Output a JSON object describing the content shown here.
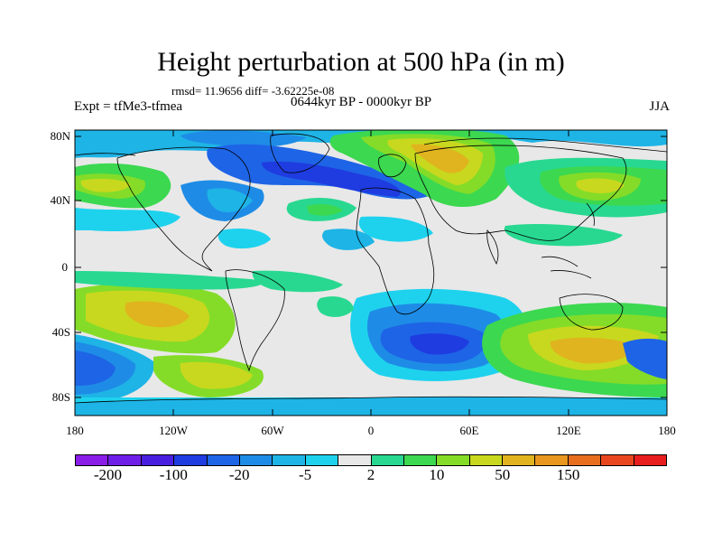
{
  "title": "Height perturbation at 500 hPa (in m)",
  "stats": "rmsd= 11.9656 diff= -3.62225e-08",
  "experiment": "Expt = tfMe3-tfmea",
  "period": "0644kyr BP - 0000kyr BP",
  "season": "JJA",
  "lat_ticks": [
    "80N",
    "40N",
    "0",
    "40S",
    "80S"
  ],
  "lon_ticks": [
    "180",
    "120W",
    "60W",
    "0",
    "60E",
    "120E",
    "180"
  ],
  "colorbar": {
    "colors": [
      "#8a1ee8",
      "#6f1ee8",
      "#4a1ee0",
      "#1e3ce0",
      "#1e64e6",
      "#1e8ce6",
      "#1eb4e6",
      "#1ed2ee",
      "#e8e8e8",
      "#28d890",
      "#3cd850",
      "#84dc28",
      "#c8d81e",
      "#e0b41e",
      "#e8961e",
      "#e86e1e",
      "#e8461e",
      "#e81e1e"
    ],
    "labels": [
      "-200",
      "-100",
      "-20",
      "-5",
      "2",
      "10",
      "50",
      "150"
    ]
  },
  "chart_data": {
    "type": "heatmap",
    "title": "Height perturbation at 500 hPa (in m)",
    "subtitle": "0644kyr BP - 0000kyr BP",
    "season": "JJA",
    "xlabel": "",
    "ylabel": "",
    "x_range": [
      -180,
      180
    ],
    "y_range": [
      -90,
      90
    ],
    "levels": [
      -200,
      -150,
      -100,
      -50,
      -20,
      -10,
      -5,
      -2,
      2,
      5,
      10,
      20,
      50,
      75,
      100,
      150,
      200
    ],
    "features": [
      {
        "region": "N Atlantic / Europe",
        "sign": "negative",
        "approx_min": -20
      },
      {
        "region": "Eurasia / Arctic",
        "sign": "positive",
        "approx_max": 50
      },
      {
        "region": "S Pacific ~55S,170W",
        "sign": "negative",
        "approx_min": -20
      },
      {
        "region": "S Indian Ocean ~55S,50E",
        "sign": "negative",
        "approx_min": -20
      },
      {
        "region": "S Indian / Australia ~55S,100E",
        "sign": "positive",
        "approx_max": 50
      },
      {
        "region": "S Pacific ~30S,140W",
        "sign": "positive",
        "approx_max": 50
      }
    ]
  }
}
